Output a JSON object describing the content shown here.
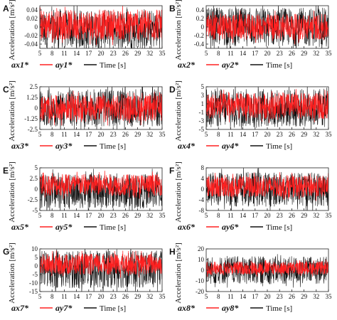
{
  "colors": {
    "ax": "#ff2020",
    "ay": "#111111",
    "axis": "#222222",
    "bg": "#ffffff"
  },
  "chart_data": [
    {
      "type": "line",
      "panel": "A",
      "ylabel": "Acceleration [m/s²]",
      "xlabel": "Time [s]",
      "x_ticks": [
        "5",
        "8",
        "11",
        "14",
        "17",
        "20",
        "23",
        "26",
        "29",
        "32",
        "35"
      ],
      "xlim": [
        5,
        35
      ],
      "y_ticks": [
        "0.04",
        "0.02",
        "0",
        "-0.02",
        "-0.04"
      ],
      "ylim": [
        -0.05,
        0.05
      ],
      "series": [
        {
          "name": "ax1*",
          "center": 0.005,
          "amplitude": 0.035
        },
        {
          "name": "ay1*",
          "center": -0.005,
          "amplitude": 0.045
        }
      ]
    },
    {
      "type": "line",
      "panel": "B",
      "ylabel": "Acceleration [m/s²]",
      "xlabel": "Time [s]",
      "x_ticks": [
        "5",
        "8",
        "11",
        "14",
        "17",
        "20",
        "23",
        "26",
        "29",
        "32",
        "35"
      ],
      "xlim": [
        5,
        35
      ],
      "y_ticks": [
        "0.4",
        "0.2",
        "0",
        "-0.2",
        "-0.4"
      ],
      "ylim": [
        -0.5,
        0.5
      ],
      "series": [
        {
          "name": "ax2*",
          "center": 0.0,
          "amplitude": 0.3
        },
        {
          "name": "ay2*",
          "center": 0.0,
          "amplitude": 0.45
        }
      ]
    },
    {
      "type": "line",
      "panel": "C",
      "ylabel": "Acceleration [m/s²]",
      "xlabel": "Time [s]",
      "x_ticks": [
        "5",
        "8",
        "11",
        "14",
        "17",
        "20",
        "23",
        "26",
        "29",
        "32",
        "35"
      ],
      "xlim": [
        5,
        35
      ],
      "y_ticks": [
        "2.5",
        "1.25",
        "0",
        "-1.25",
        "-2.5"
      ],
      "ylim": [
        -2.5,
        2.5
      ],
      "series": [
        {
          "name": "ax3*",
          "center": 0.0,
          "amplitude": 1.5
        },
        {
          "name": "ay3*",
          "center": 0.0,
          "amplitude": 2.2
        }
      ]
    },
    {
      "type": "line",
      "panel": "D",
      "ylabel": "Acceleration [m/s²]",
      "xlabel": "Time [s]",
      "x_ticks": [
        "5",
        "8",
        "11",
        "14",
        "17",
        "20",
        "23",
        "26",
        "29",
        "32",
        "35"
      ],
      "xlim": [
        5,
        35
      ],
      "y_ticks": [
        "5",
        "3",
        "1",
        "-1",
        "-3",
        "-5"
      ],
      "ylim": [
        -5,
        5
      ],
      "series": [
        {
          "name": "ax4*",
          "center": 0.5,
          "amplitude": 3.0
        },
        {
          "name": "ay4*",
          "center": 0.0,
          "amplitude": 4.5
        }
      ]
    },
    {
      "type": "line",
      "panel": "E",
      "ylabel": "Acceleration [m/s²]",
      "xlabel": "Time [s]",
      "x_ticks": [
        "5",
        "8",
        "11",
        "14",
        "17",
        "20",
        "23",
        "26",
        "29",
        "32",
        "35"
      ],
      "xlim": [
        5,
        35
      ],
      "y_ticks": [
        "5",
        "2.5",
        "0",
        "-2.5",
        "-5"
      ],
      "ylim": [
        -5,
        5
      ],
      "series": [
        {
          "name": "ax5*",
          "center": 1.0,
          "amplitude": 2.5
        },
        {
          "name": "ay5*",
          "center": -0.5,
          "amplitude": 4.0
        }
      ]
    },
    {
      "type": "line",
      "panel": "F",
      "ylabel": "Acceleration [m/s²]",
      "xlabel": "Time [s]",
      "x_ticks": [
        "5",
        "8",
        "11",
        "14",
        "17",
        "20",
        "23",
        "26",
        "29",
        "32",
        "35"
      ],
      "xlim": [
        5,
        35
      ],
      "y_ticks": [
        "8",
        "4",
        "0",
        "-4",
        "-8"
      ],
      "ylim": [
        -8,
        8
      ],
      "series": [
        {
          "name": "ax6*",
          "center": 1.0,
          "amplitude": 4.0
        },
        {
          "name": "ay6*",
          "center": 0.0,
          "amplitude": 6.5
        }
      ]
    },
    {
      "type": "line",
      "panel": "G",
      "ylabel": "Acceleration [m/s²]",
      "xlabel": "Time [s]",
      "x_ticks": [
        "5",
        "8",
        "11",
        "14",
        "17",
        "20",
        "23",
        "26",
        "29",
        "32",
        "35"
      ],
      "xlim": [
        5,
        35
      ],
      "y_ticks": [
        "10",
        "5",
        "0",
        "-5",
        "-10",
        "-15"
      ],
      "ylim": [
        -15,
        10
      ],
      "series": [
        {
          "name": "ax7*",
          "center": 1.0,
          "amplitude": 6.0
        },
        {
          "name": "ay7*",
          "center": -2.0,
          "amplitude": 11.0
        }
      ]
    },
    {
      "type": "line",
      "panel": "H",
      "ylabel": "Acceleration [m/s²]",
      "xlabel": "Time [s]",
      "x_ticks": [
        "5",
        "8",
        "11",
        "14",
        "17",
        "20",
        "23",
        "26",
        "29",
        "32",
        "35"
      ],
      "xlim": [
        5,
        35
      ],
      "y_ticks": [
        "20",
        "10",
        "0",
        "-10",
        "-20"
      ],
      "ylim": [
        -20,
        20
      ],
      "series": [
        {
          "name": "ax8*",
          "center": 2.0,
          "amplitude": 6.0
        },
        {
          "name": "ay8*",
          "center": 0.0,
          "amplitude": 13.0
        }
      ]
    }
  ]
}
